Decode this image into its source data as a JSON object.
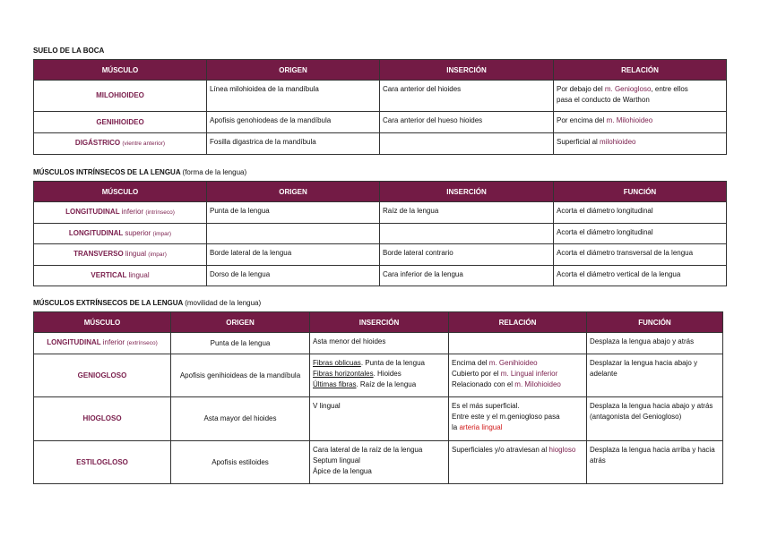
{
  "accent_color": "#731b45",
  "sections": [
    {
      "title": "SUELO DE LA BOCA",
      "subtitle": "",
      "headers": [
        "MÚSCULO",
        "ORIGEN",
        "INSERCIÓN",
        "RELACIÓN"
      ],
      "rows": [
        [
          [
            [
              {
                "t": "MILOHIOIDEO"
              }
            ]
          ],
          [
            [
              {
                "t": "Línea milohioidea de la mandíbula"
              }
            ]
          ],
          [
            [
              {
                "t": "Cara anterior del hioides"
              }
            ]
          ],
          [
            [
              {
                "t": "Por debajo del "
              },
              {
                "t": "m. Geniogloso",
                "s": "m"
              },
              {
                "t": ", entre ellos"
              }
            ],
            [
              {
                "t": "pasa el conducto de Warthon"
              }
            ]
          ]
        ],
        [
          [
            [
              {
                "t": "GENIHIOIDEO"
              }
            ]
          ],
          [
            [
              {
                "t": "Apofisis genohiodeas de la mandíbula"
              }
            ]
          ],
          [
            [
              {
                "t": "Cara anterior del hueso hioides"
              }
            ]
          ],
          [
            [
              {
                "t": "Por encima del "
              },
              {
                "t": "m. Milohioideo",
                "s": "m"
              }
            ]
          ]
        ],
        [
          [
            [
              {
                "t": "DIGÁSTRICO "
              },
              {
                "t": "(vientre anterior)",
                "s": "sm"
              }
            ]
          ],
          [
            [
              {
                "t": "Fosilla digastrica de la mandíbula"
              }
            ]
          ],
          [],
          [
            [
              {
                "t": "Superficial al "
              },
              {
                "t": "milohioideo",
                "s": "m"
              }
            ]
          ]
        ]
      ]
    },
    {
      "title": "MÚSCULOS INTRÍNSECOS DE LA LENGUA",
      "subtitle": "(forma de la lengua)",
      "headers": [
        "MÚSCULO",
        "ORIGEN",
        "INSERCIÓN",
        "FUNCIÓN"
      ],
      "rows": [
        [
          [
            [
              {
                "t": "LONGITUDINAL "
              },
              {
                "t": "inferior ",
                "s": "nb"
              },
              {
                "t": "(intrínseco)",
                "s": "sm"
              }
            ]
          ],
          [
            [
              {
                "t": "Punta de la lengua"
              }
            ]
          ],
          [
            [
              {
                "t": "Raíz de la lengua"
              }
            ]
          ],
          [
            [
              {
                "t": "Acorta el diámetro longitudinal"
              }
            ]
          ]
        ],
        [
          [
            [
              {
                "t": "LONGITUDINAL "
              },
              {
                "t": "superior ",
                "s": "nb"
              },
              {
                "t": "(impar)",
                "s": "sm"
              }
            ]
          ],
          [],
          [],
          [
            [
              {
                "t": "Acorta el diámetro longitudinal"
              }
            ]
          ]
        ],
        [
          [
            [
              {
                "t": "TRANSVERSO "
              },
              {
                "t": "lingual ",
                "s": "nb"
              },
              {
                "t": "(impar)",
                "s": "sm"
              }
            ]
          ],
          [
            [
              {
                "t": "Borde lateral de la lengua"
              }
            ]
          ],
          [
            [
              {
                "t": "Borde lateral contrario"
              }
            ]
          ],
          [
            [
              {
                "t": "Acorta el diámetro transversal de la lengua"
              }
            ]
          ]
        ],
        [
          [
            [
              {
                "t": "VERTICAL "
              },
              {
                "t": "lingual",
                "s": "nb"
              }
            ]
          ],
          [
            [
              {
                "t": "Dorso de la lengua"
              }
            ]
          ],
          [
            [
              {
                "t": "Cara inferior de la lengua"
              }
            ]
          ],
          [
            [
              {
                "t": "Acorta el diámetro vertical de la lengua"
              }
            ]
          ]
        ]
      ]
    },
    {
      "title": "MÚSCULOS EXTRÍNSECOS DE LA LENGUA",
      "subtitle": "(movilidad de la lengua)",
      "headers": [
        "MÚSCULO",
        "ORIGEN",
        "INSERCIÓN",
        "RELACIÓN",
        "FUNCIÓN"
      ],
      "rows": [
        [
          [
            [
              {
                "t": "LONGITUDINAL "
              },
              {
                "t": "inferior ",
                "s": "nb"
              },
              {
                "t": "(extrínseco)",
                "s": "sm"
              }
            ]
          ],
          [
            [
              {
                "t": "Punta de la lengua"
              }
            ]
          ],
          [
            [
              {
                "t": "Asta menor del hioides"
              }
            ]
          ],
          [],
          [
            [
              {
                "t": "Desplaza la lengua abajo y atrás"
              }
            ]
          ]
        ],
        [
          [
            [
              {
                "t": "GENIOGLOSO"
              }
            ]
          ],
          [
            [
              {
                "t": "Apofisis genihioideas de la mandíbula"
              }
            ]
          ],
          [
            [
              {
                "t": "Fibras oblicuas",
                "s": "u"
              },
              {
                "t": ". Punta de la lengua"
              }
            ],
            [
              {
                "t": "Fibras horizontales",
                "s": "u"
              },
              {
                "t": ". Hioides"
              }
            ],
            [
              {
                "t": "Últimas fibras",
                "s": "u"
              },
              {
                "t": ". Raíz de la lengua"
              }
            ]
          ],
          [
            [
              {
                "t": "Encima del "
              },
              {
                "t": "m. Genihioideo",
                "s": "m"
              }
            ],
            [
              {
                "t": "Cubierto por el "
              },
              {
                "t": "m. Lingual inferior",
                "s": "m"
              }
            ],
            [
              {
                "t": "Relacionado con el "
              },
              {
                "t": "m. Milohioideo",
                "s": "m"
              }
            ]
          ],
          [
            [
              {
                "t": "Desplazar la lengua hacia abajo y adelante"
              }
            ]
          ]
        ],
        [
          [
            [
              {
                "t": "HIOGLOSO"
              }
            ]
          ],
          [
            [
              {
                "t": "Asta mayor del hioides"
              }
            ]
          ],
          [
            [
              {
                "t": "V lingual"
              }
            ]
          ],
          [
            [
              {
                "t": "Es el más superficial."
              }
            ],
            [
              {
                "t": "Entre este y el m.geniogloso pasa"
              }
            ],
            [
              {
                "t": "la "
              },
              {
                "t": "arteria lingual",
                "s": "r"
              }
            ]
          ],
          [
            [
              {
                "t": "Desplaza la lengua hacia abajo y atrás (antagonista del Geniogloso)"
              }
            ]
          ]
        ],
        [
          [
            [
              {
                "t": "ESTILOGLOSO"
              }
            ]
          ],
          [
            [
              {
                "t": "Apofisis estiloides"
              }
            ]
          ],
          [
            [
              {
                "t": "Cara lateral de la raíz de la lengua"
              }
            ],
            [
              {
                "t": "Septum lingual"
              }
            ],
            [
              {
                "t": "Ápice de la lengua"
              }
            ]
          ],
          [
            [
              {
                "t": "Superficiales y/o atraviesan al "
              },
              {
                "t": "hiogloso",
                "s": "m"
              }
            ]
          ],
          [
            [
              {
                "t": "Desplaza la lengua hacia arriba y hacia atrás"
              }
            ]
          ]
        ]
      ]
    }
  ]
}
